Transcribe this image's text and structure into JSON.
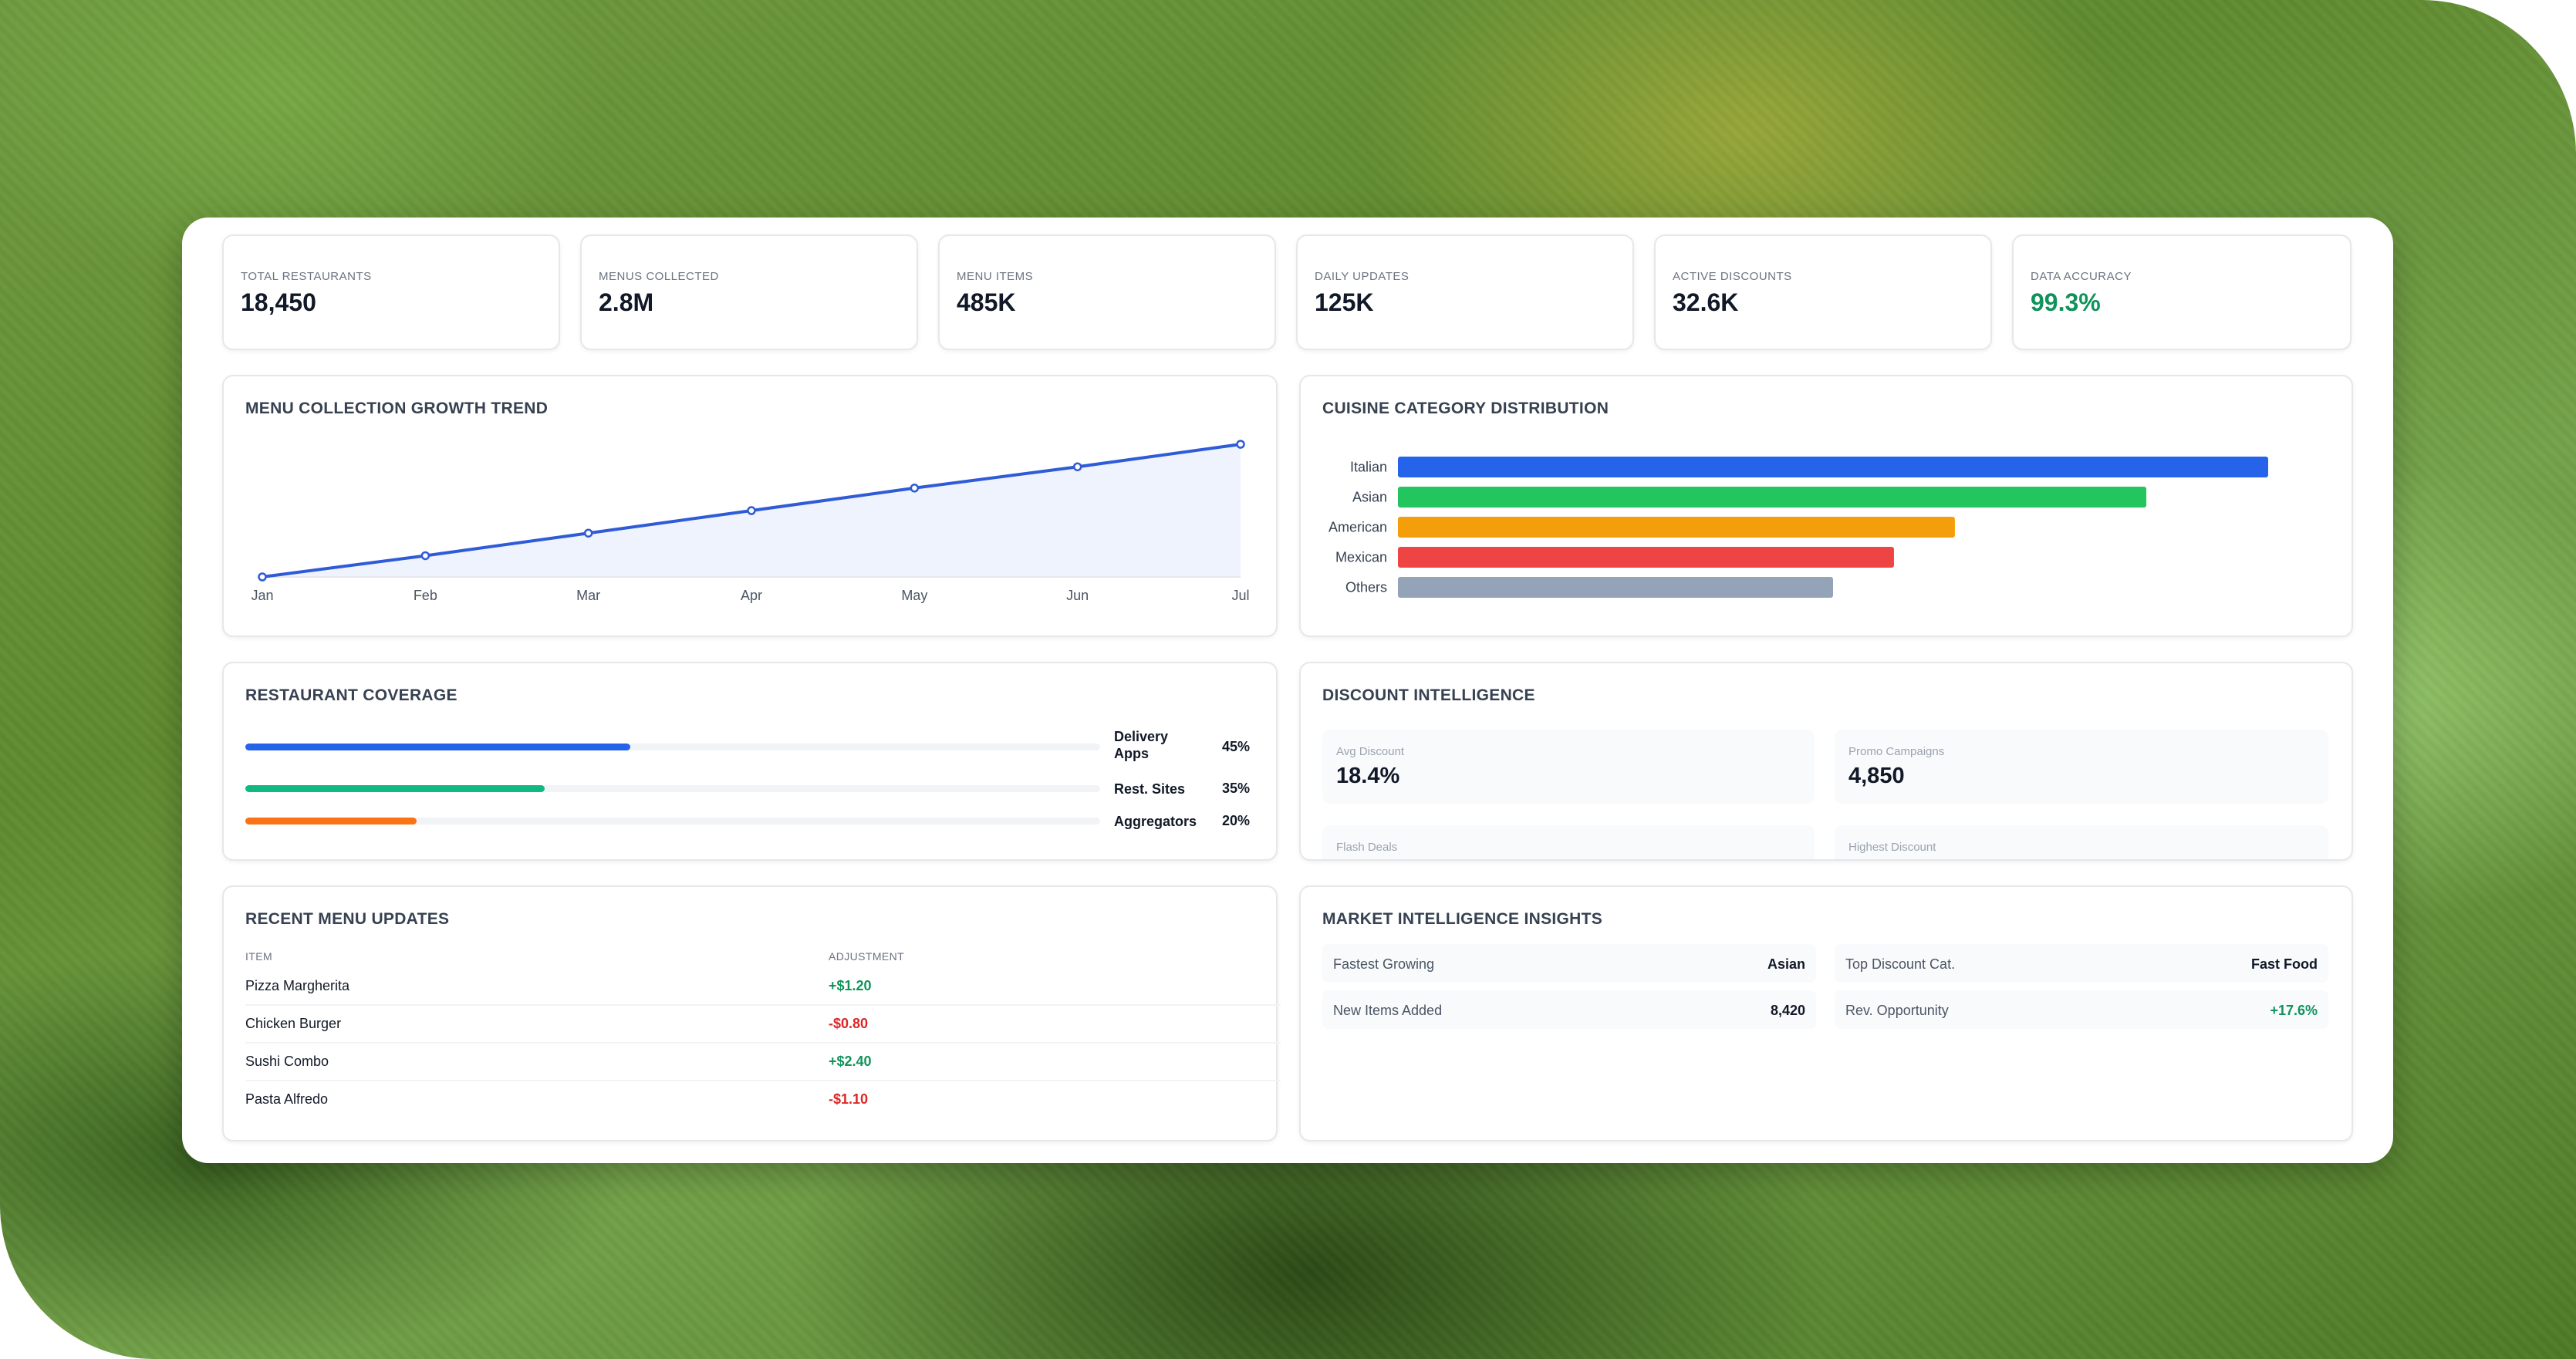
{
  "stats": [
    {
      "label": "TOTAL RESTAURANTS",
      "value": "18,450"
    },
    {
      "label": "MENUS COLLECTED",
      "value": "2.8M"
    },
    {
      "label": "MENU ITEMS",
      "value": "485K"
    },
    {
      "label": "DAILY UPDATES",
      "value": "125K"
    },
    {
      "label": "ACTIVE DISCOUNTS",
      "value": "32.6K"
    },
    {
      "label": "DATA ACCURACY",
      "value": "99.3%"
    }
  ],
  "growth": {
    "title": "MENU COLLECTION GROWTH TREND"
  },
  "cuisine": {
    "title": "CUISINE CATEGORY DISTRIBUTION"
  },
  "chart_data": [
    {
      "type": "area",
      "title": "MENU COLLECTION GROWTH TREND",
      "categories": [
        "Jan",
        "Feb",
        "Mar",
        "Apr",
        "May",
        "Jun",
        "Jul"
      ],
      "values": [
        0,
        16,
        33,
        50,
        67,
        83,
        100
      ],
      "ylim": [
        0,
        100
      ],
      "grid": false,
      "color": "#2f5bd7"
    },
    {
      "type": "bar",
      "orientation": "horizontal",
      "title": "CUISINE CATEGORY DISTRIBUTION",
      "categories": [
        "Italian",
        "Asian",
        "American",
        "Mexican",
        "Others"
      ],
      "values": [
        100,
        86,
        64,
        57,
        50
      ],
      "xlim": [
        0,
        100
      ],
      "colors": [
        "#2563eb",
        "#22c55e",
        "#f59e0b",
        "#ef4444",
        "#94a3b8"
      ]
    }
  ],
  "coverage": {
    "title": "RESTAURANT COVERAGE",
    "rows": [
      {
        "label": "Delivery Apps",
        "pct_label": "45%",
        "pct": 0.45,
        "color": "#2563eb"
      },
      {
        "label": "Rest. Sites",
        "pct_label": "35%",
        "pct": 0.35,
        "color": "#10b981"
      },
      {
        "label": "Aggregators",
        "pct_label": "20%",
        "pct": 0.2,
        "color": "#f97316"
      }
    ]
  },
  "discount": {
    "title": "DISCOUNT INTELLIGENCE",
    "tiles": [
      {
        "label": "Avg Discount",
        "value": "18.4%"
      },
      {
        "label": "Promo Campaigns",
        "value": "4,850"
      },
      {
        "label": "Flash Deals",
        "value": ""
      },
      {
        "label": "Highest Discount",
        "value": ""
      }
    ]
  },
  "updates": {
    "title": "RECENT MENU UPDATES",
    "col_item": "ITEM",
    "col_adjustment": "ADJUSTMENT",
    "rows": [
      {
        "item": "Pizza Margherita",
        "adjustment": "+$1.20"
      },
      {
        "item": "Chicken Burger",
        "adjustment": "-$0.80"
      },
      {
        "item": "Sushi Combo",
        "adjustment": "+$2.40"
      },
      {
        "item": "Pasta Alfredo",
        "adjustment": "-$1.10"
      }
    ]
  },
  "insights": {
    "title": "MARKET INTELLIGENCE INSIGHTS",
    "items": [
      {
        "label": "Fastest Growing",
        "value": "Asian"
      },
      {
        "label": "Top Discount Cat.",
        "value": "Fast Food"
      },
      {
        "label": "New Items Added",
        "value": "8,420"
      },
      {
        "label": "Rev. Opportunity",
        "value": "+17.6%"
      }
    ]
  }
}
